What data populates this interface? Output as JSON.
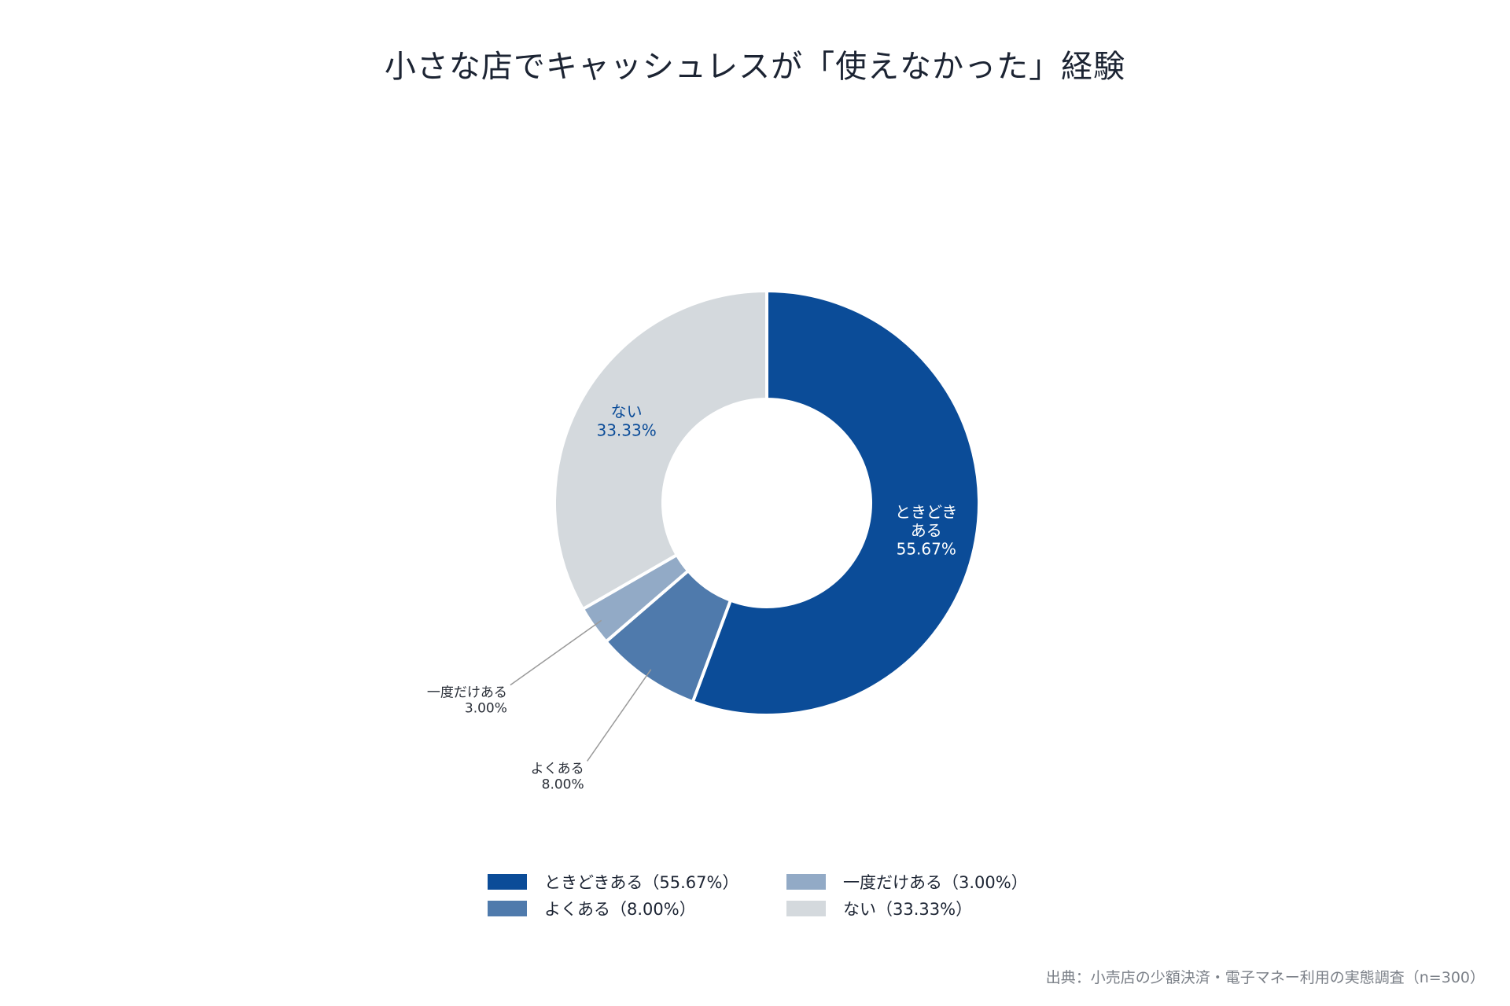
{
  "title": "小さな店でキャッシュレスが「使えなかった」経験",
  "source": "出典：小売店の少額決済・電子マネー利用の実態調査（n=300）",
  "chart_data": {
    "type": "pie",
    "donut": true,
    "slices": [
      {
        "label": "ときどきある",
        "label_lines": [
          "ときどき",
          "ある"
        ],
        "value": 55.67,
        "value_label": "55.67%",
        "legend": "ときどきある（55.67%）",
        "color": "#0b4c98",
        "label_color": "#ffffff",
        "label_placement": "inside"
      },
      {
        "label": "よくある",
        "label_lines": [
          "よくある"
        ],
        "value": 8.0,
        "value_label": "8.00%",
        "legend": "よくある（8.00%）",
        "color": "#4f7aac",
        "label_color": "#2a2f38",
        "label_placement": "outside"
      },
      {
        "label": "一度だけある",
        "label_lines": [
          "一度だけある"
        ],
        "value": 3.0,
        "value_label": "3.00%",
        "legend": "一度だけある（3.00%）",
        "color": "#92aac6",
        "label_color": "#2a2f38",
        "label_placement": "outside"
      },
      {
        "label": "ない",
        "label_lines": [
          "ない"
        ],
        "value": 33.33,
        "value_label": "33.33%",
        "legend": "ない（33.33%）",
        "color": "#d4d9dd",
        "label_color": "#0b4c98",
        "label_placement": "inside"
      }
    ],
    "legend_order": [
      0,
      2,
      1,
      3
    ],
    "legend_placement": "bottom"
  }
}
